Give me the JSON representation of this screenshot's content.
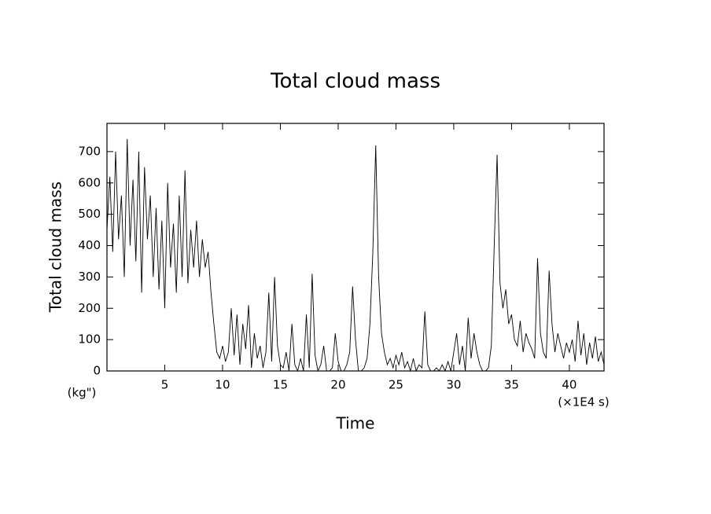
{
  "chart_data": {
    "type": "line",
    "title": "Total cloud mass",
    "x_label": "Time",
    "y_label": "Total cloud mass",
    "y_unit": "(kg\")",
    "x_unit": "(×1E4 s)",
    "xlim": [
      0,
      43
    ],
    "ylim": [
      0,
      790
    ],
    "xticks": [
      5,
      10,
      15,
      20,
      25,
      30,
      35,
      40
    ],
    "yticks": [
      0,
      100,
      200,
      300,
      400,
      500,
      600,
      700
    ],
    "x": [
      0,
      0.25,
      0.5,
      0.75,
      1,
      1.25,
      1.5,
      1.75,
      2,
      2.25,
      2.5,
      2.75,
      3,
      3.25,
      3.5,
      3.75,
      4,
      4.25,
      4.5,
      4.75,
      5,
      5.25,
      5.5,
      5.75,
      6,
      6.25,
      6.5,
      6.75,
      7,
      7.25,
      7.5,
      7.75,
      8,
      8.25,
      8.5,
      8.75,
      9,
      9.25,
      9.5,
      9.75,
      10,
      10.25,
      10.5,
      10.75,
      11,
      11.25,
      11.5,
      11.75,
      12,
      12.25,
      12.5,
      12.75,
      13,
      13.25,
      13.5,
      13.75,
      14,
      14.25,
      14.5,
      14.75,
      15,
      15.25,
      15.5,
      15.75,
      16,
      16.25,
      16.5,
      16.75,
      17,
      17.25,
      17.5,
      17.75,
      18,
      18.25,
      18.5,
      18.75,
      19,
      19.25,
      19.5,
      19.75,
      20,
      20.25,
      20.5,
      20.75,
      21,
      21.25,
      21.5,
      21.75,
      22,
      22.25,
      22.5,
      22.75,
      23,
      23.25,
      23.5,
      23.75,
      24,
      24.25,
      24.5,
      24.75,
      25,
      25.25,
      25.5,
      25.75,
      26,
      26.25,
      26.5,
      26.75,
      27,
      27.25,
      27.5,
      27.75,
      28,
      28.25,
      28.5,
      28.75,
      29,
      29.25,
      29.5,
      29.75,
      30,
      30.25,
      30.5,
      30.75,
      31,
      31.25,
      31.5,
      31.75,
      32,
      32.25,
      32.5,
      32.75,
      33,
      33.25,
      33.5,
      33.75,
      34,
      34.25,
      34.5,
      34.75,
      35,
      35.25,
      35.5,
      35.75,
      36,
      36.25,
      36.5,
      36.75,
      37,
      37.25,
      37.5,
      37.75,
      38,
      38.25,
      38.5,
      38.75,
      39,
      39.25,
      39.5,
      39.75,
      40,
      40.25,
      40.5,
      40.75,
      41,
      41.25,
      41.5,
      41.75,
      42,
      42.25,
      42.5,
      42.75,
      43
    ],
    "series": [
      {
        "color": "#000000",
        "values": [
          450,
          620,
          380,
          700,
          420,
          560,
          300,
          740,
          400,
          610,
          350,
          700,
          250,
          650,
          420,
          560,
          300,
          520,
          260,
          480,
          200,
          600,
          330,
          470,
          250,
          560,
          300,
          640,
          280,
          450,
          330,
          480,
          300,
          420,
          330,
          380,
          250,
          150,
          60,
          40,
          80,
          30,
          60,
          200,
          50,
          180,
          20,
          150,
          70,
          210,
          10,
          120,
          40,
          80,
          10,
          60,
          250,
          30,
          300,
          80,
          20,
          10,
          60,
          0,
          150,
          20,
          0,
          40,
          0,
          180,
          10,
          310,
          50,
          0,
          20,
          80,
          0,
          0,
          10,
          120,
          30,
          0,
          0,
          20,
          60,
          270,
          100,
          0,
          0,
          10,
          40,
          150,
          380,
          720,
          300,
          120,
          60,
          20,
          40,
          10,
          50,
          20,
          60,
          10,
          30,
          0,
          40,
          0,
          20,
          10,
          190,
          20,
          0,
          0,
          10,
          0,
          20,
          0,
          30,
          0,
          60,
          120,
          20,
          80,
          0,
          170,
          40,
          120,
          60,
          20,
          0,
          0,
          10,
          80,
          400,
          690,
          280,
          200,
          260,
          150,
          180,
          100,
          80,
          160,
          60,
          120,
          90,
          70,
          40,
          360,
          120,
          60,
          40,
          320,
          150,
          60,
          120,
          80,
          40,
          90,
          60,
          100,
          30,
          160,
          50,
          120,
          20,
          90,
          40,
          110,
          30,
          60,
          20
        ]
      }
    ]
  }
}
